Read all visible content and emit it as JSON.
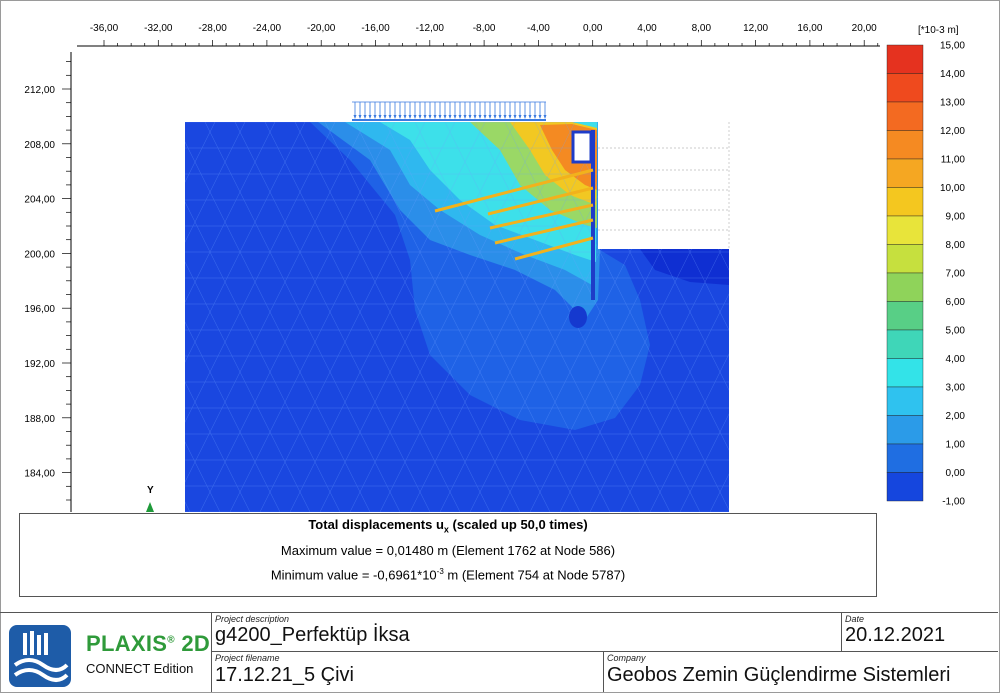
{
  "x_axis_ticks": [
    "-36,00",
    "-32,00",
    "-28,00",
    "-24,00",
    "-20,00",
    "-16,00",
    "-12,00",
    "-8,00",
    "-4,00",
    "0,00",
    "4,00",
    "8,00",
    "12,00",
    "16,00",
    "20,00"
  ],
  "y_axis_ticks": [
    "212,00",
    "208,00",
    "204,00",
    "200,00",
    "196,00",
    "192,00",
    "188,00",
    "184,00"
  ],
  "axis_marker": "Y",
  "legend": {
    "unit": "[*10-3 m]",
    "labels": [
      "15,00",
      "14,00",
      "13,00",
      "12,00",
      "11,00",
      "10,00",
      "9,00",
      "8,00",
      "7,00",
      "6,00",
      "5,00",
      "4,00",
      "3,00",
      "2,00",
      "1,00",
      "0,00",
      "-1,00"
    ],
    "colors": [
      "#e5321f",
      "#ef4a1e",
      "#f36a21",
      "#f58a22",
      "#f5a722",
      "#f4c71f",
      "#e8e43a",
      "#c6e03e",
      "#8fd35a",
      "#58cf86",
      "#3fd6b8",
      "#33e3e8",
      "#2fc2ef",
      "#2b9be8",
      "#1f6ee2",
      "#1546de"
    ]
  },
  "info": {
    "title": "Total displacements u",
    "title_sub": "x",
    "title_suffix": "(scaled up 50,0 times)",
    "max": "Maximum value = 0,01480 m (Element 1762 at Node 586)",
    "min_prefix": "Minimum value = -0,6961*10",
    "min_exp": "-3",
    "min_suffix": " m (Element 754 at Node 5787)"
  },
  "footer": {
    "brand": "PLAXIS",
    "brand_reg": "®",
    "brand_suffix": " 2D",
    "edition": "CONNECT Edition",
    "project_description_label": "Project description",
    "project_description": "g4200_Perfektüp İksa",
    "date_label": "Date",
    "date": "20.12.2021",
    "project_filename_label": "Project filename",
    "project_filename": "17.12.21_5 Çivi",
    "company_label": "Company",
    "company": "Geobos Zemin Güçlendirme Sistemleri"
  },
  "colors": {
    "deep_blue": "#1a47e0",
    "soil_blue": "#1f5fe6",
    "footer_border": "#555555",
    "brand_green": "#2f9a3a"
  }
}
